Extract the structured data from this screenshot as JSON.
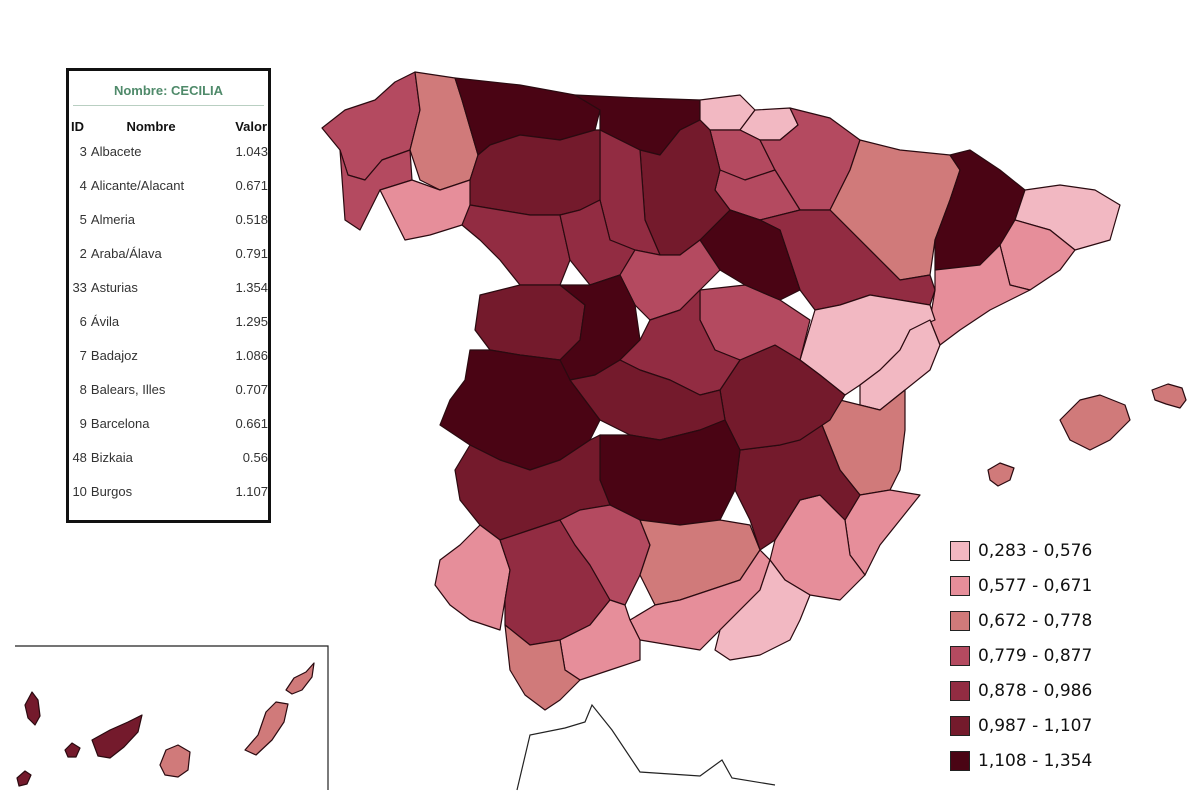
{
  "info_panel": {
    "title": "Nombre: CECILIA",
    "columns": [
      "ID",
      "Nombre",
      "Valor"
    ],
    "rows": [
      {
        "id": "3",
        "name": "Albacete",
        "value": "1.043"
      },
      {
        "id": "4",
        "name": "Alicante/Alacant",
        "value": "0.671"
      },
      {
        "id": "5",
        "name": "Almeria",
        "value": "0.518"
      },
      {
        "id": "2",
        "name": "Araba/Álava",
        "value": "0.791"
      },
      {
        "id": "33",
        "name": "Asturias",
        "value": "1.354"
      },
      {
        "id": "6",
        "name": "Ávila",
        "value": "1.295"
      },
      {
        "id": "7",
        "name": "Badajoz",
        "value": "1.086"
      },
      {
        "id": "8",
        "name": "Balears, Illes",
        "value": "0.707"
      },
      {
        "id": "9",
        "name": "Barcelona",
        "value": "0.661"
      },
      {
        "id": "48",
        "name": "Bizkaia",
        "value": "0.56"
      },
      {
        "id": "10",
        "name": "Burgos",
        "value": "1.107"
      }
    ]
  },
  "legend": {
    "classes": [
      {
        "label": "0,283 - 0,576",
        "color": "#f2b8c2"
      },
      {
        "label": "0,577 - 0,671",
        "color": "#e68e9a"
      },
      {
        "label": "0,672 - 0,778",
        "color": "#d07a7a"
      },
      {
        "label": "0,779 - 0,877",
        "color": "#b44a60"
      },
      {
        "label": "0,878 - 0,986",
        "color": "#922c42"
      },
      {
        "label": "0,987 - 1,107",
        "color": "#741a2c"
      },
      {
        "label": "1,108 - 1,354",
        "color": "#4a0414"
      }
    ]
  },
  "provinces": [
    {
      "name": "A Coruña",
      "class": 3
    },
    {
      "name": "Lugo",
      "class": 2
    },
    {
      "name": "Pontevedra",
      "class": 3
    },
    {
      "name": "Ourense",
      "class": 1
    },
    {
      "name": "Asturias",
      "class": 6
    },
    {
      "name": "Cantabria",
      "class": 6
    },
    {
      "name": "Bizkaia",
      "class": 0
    },
    {
      "name": "Gipuzkoa",
      "class": 0
    },
    {
      "name": "Araba/Álava",
      "class": 3
    },
    {
      "name": "Navarra",
      "class": 3
    },
    {
      "name": "La Rioja",
      "class": 3
    },
    {
      "name": "Huesca",
      "class": 2
    },
    {
      "name": "Lleida",
      "class": 6
    },
    {
      "name": "Girona",
      "class": 0
    },
    {
      "name": "Barcelona",
      "class": 1
    },
    {
      "name": "Tarragona",
      "class": 1
    },
    {
      "name": "Zaragoza",
      "class": 4
    },
    {
      "name": "Teruel",
      "class": 0
    },
    {
      "name": "Castellón",
      "class": 0
    },
    {
      "name": "Valencia",
      "class": 2
    },
    {
      "name": "Alicante/Alacant",
      "class": 1
    },
    {
      "name": "Murcia",
      "class": 1
    },
    {
      "name": "Albacete",
      "class": 5
    },
    {
      "name": "Cuenca",
      "class": 5
    },
    {
      "name": "Guadalajara",
      "class": 3
    },
    {
      "name": "Soria",
      "class": 6
    },
    {
      "name": "Burgos",
      "class": 5
    },
    {
      "name": "Palencia",
      "class": 4
    },
    {
      "name": "León",
      "class": 5
    },
    {
      "name": "Zamora",
      "class": 4
    },
    {
      "name": "Valladolid",
      "class": 4
    },
    {
      "name": "Segovia",
      "class": 3
    },
    {
      "name": "Salamanca",
      "class": 5
    },
    {
      "name": "Ávila",
      "class": 6
    },
    {
      "name": "Madrid",
      "class": 4
    },
    {
      "name": "Cáceres",
      "class": 6
    },
    {
      "name": "Toledo",
      "class": 5
    },
    {
      "name": "Ciudad Real",
      "class": 6
    },
    {
      "name": "Badajoz",
      "class": 5
    },
    {
      "name": "Huelva",
      "class": 1
    },
    {
      "name": "Sevilla",
      "class": 4
    },
    {
      "name": "Córdoba",
      "class": 3
    },
    {
      "name": "Jaén",
      "class": 2
    },
    {
      "name": "Granada",
      "class": 1
    },
    {
      "name": "Almería",
      "class": 0
    },
    {
      "name": "Málaga",
      "class": 1
    },
    {
      "name": "Cádiz",
      "class": 2
    },
    {
      "name": "Mallorca",
      "class": 2
    },
    {
      "name": "Menorca",
      "class": 2
    },
    {
      "name": "Ibiza",
      "class": 2
    },
    {
      "name": "La Palma",
      "class": 5
    },
    {
      "name": "El Hierro",
      "class": 5
    },
    {
      "name": "La Gomera",
      "class": 5
    },
    {
      "name": "Tenerife",
      "class": 5
    },
    {
      "name": "Gran Canaria",
      "class": 2
    },
    {
      "name": "Fuerteventura",
      "class": 2
    },
    {
      "name": "Lanzarote",
      "class": 2
    }
  ]
}
